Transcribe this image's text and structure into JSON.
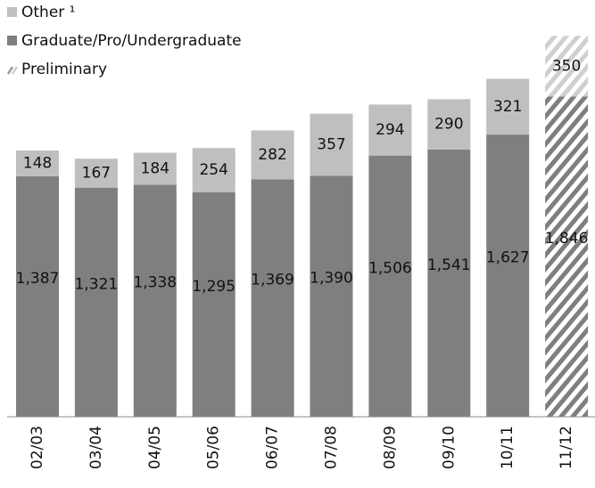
{
  "chart_data": {
    "type": "stacked_bar",
    "categories": [
      "02/03",
      "03/04",
      "04/05",
      "05/06",
      "06/07",
      "07/08",
      "08/09",
      "09/10",
      "10/11",
      "11/12"
    ],
    "series": [
      {
        "name": "Graduate/Pro/Undergraduate",
        "color": "#7f7f7f",
        "values": [
          1387,
          1321,
          1338,
          1295,
          1369,
          1390,
          1506,
          1541,
          1627,
          1846
        ],
        "value_labels": [
          "1,387",
          "1,321",
          "1,338",
          "1,295",
          "1,369",
          "1,390",
          "1,506",
          "1,541",
          "1,627",
          "1,846"
        ]
      },
      {
        "name": "Other ¹",
        "color": "#bfbfbf",
        "values": [
          148,
          167,
          184,
          254,
          282,
          357,
          294,
          290,
          321,
          350
        ]
      }
    ],
    "preliminary_label": "Preliminary",
    "preliminary": [
      false,
      false,
      false,
      false,
      false,
      false,
      false,
      false,
      false,
      true
    ],
    "ylim": [
      0,
      2300
    ]
  }
}
